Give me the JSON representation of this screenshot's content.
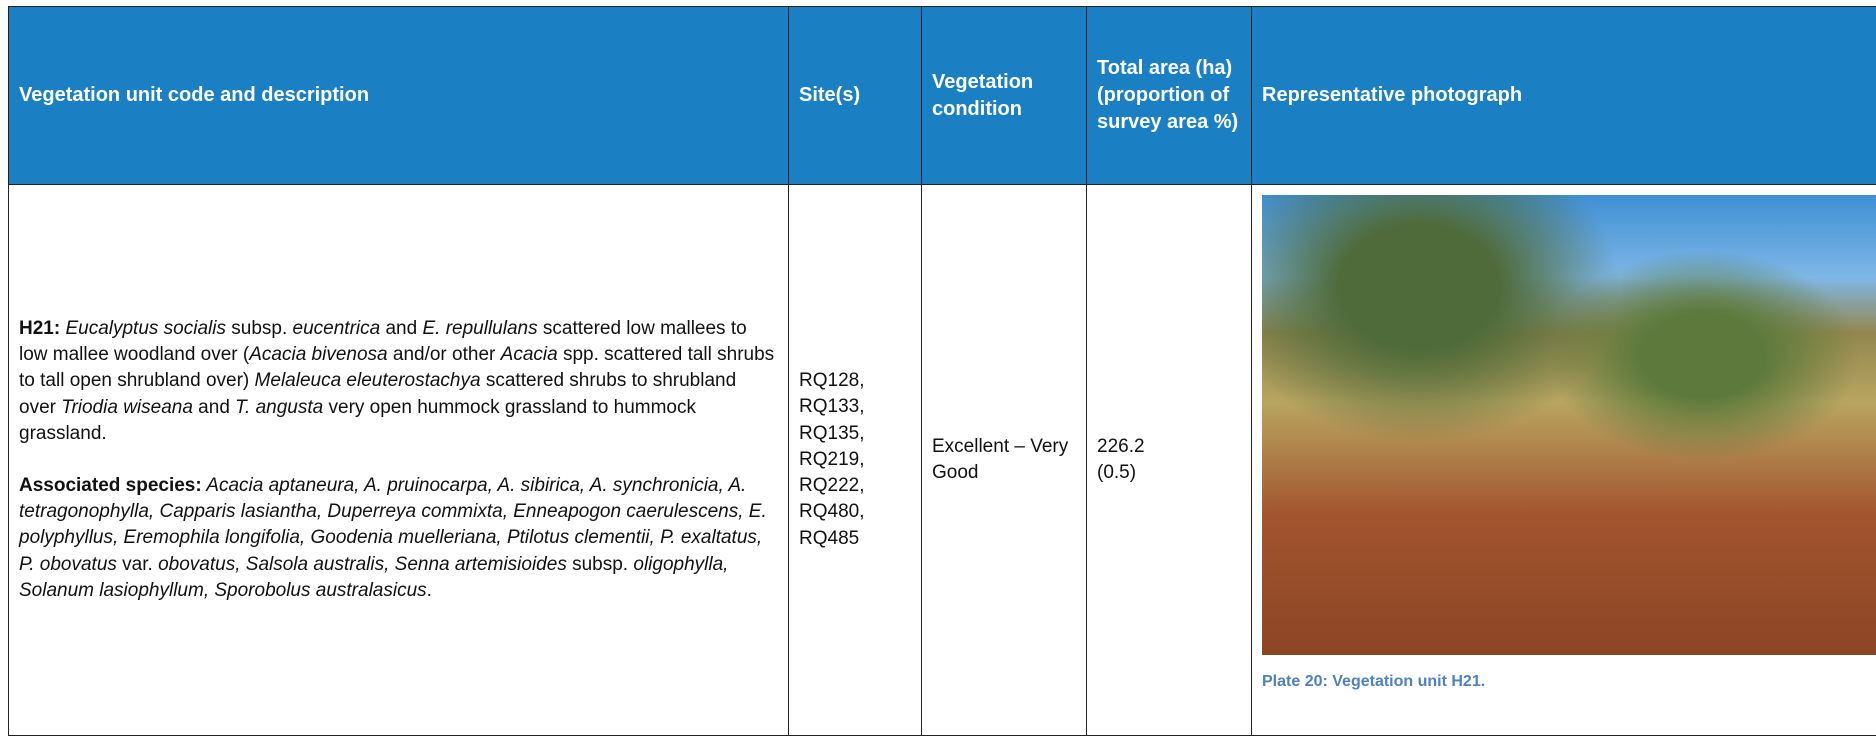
{
  "table": {
    "header": [
      "Vegetation unit code and description",
      "Site(s)",
      "Vegetation condition",
      "Total area (ha) (proportion of survey area %)",
      "Representative photograph"
    ],
    "row": {
      "description": [
        {
          "text": "H21:",
          "style": "bold"
        },
        {
          "text": " Eucalyptus socialis",
          "style": "italic"
        },
        {
          "text": " subsp. "
        },
        {
          "text": "eucentrica",
          "style": "italic"
        },
        {
          "text": " and "
        },
        {
          "text": "E. repullulans",
          "style": "italic"
        },
        {
          "text": " scattered low mallees to low mallee woodland over ("
        },
        {
          "text": "Acacia bivenosa",
          "style": "italic"
        },
        {
          "text": " and/or other "
        },
        {
          "text": "Acacia",
          "style": "italic"
        },
        {
          "text": " spp. scattered tall shrubs to tall open shrubland over) "
        },
        {
          "text": "Melaleuca eleuterostachya",
          "style": "italic"
        },
        {
          "text": " scattered shrubs to shrubland over "
        },
        {
          "text": "Triodia wiseana",
          "style": "italic"
        },
        {
          "text": " and "
        },
        {
          "text": "T. angusta",
          "style": "italic"
        },
        {
          "text": " very open hummock grassland to hummock grassland."
        }
      ],
      "associated": [
        {
          "text": "Associated species:",
          "style": "bold"
        },
        {
          "text": " Acacia aptaneura, A. pruinocarpa, A. sibirica, A. synchronicia, A. tetragonophylla, Capparis lasiantha, Duperreya commixta, Enneapogon caerulescens, E. polyphyllus, Eremophila longifolia, Goodenia muelleriana, Ptilotus clementii, P. exaltatus, P. obovatus",
          "style": "italic"
        },
        {
          "text": " var. "
        },
        {
          "text": "obovatus, Salsola australis, Senna artemisioides",
          "style": "italic"
        },
        {
          "text": " subsp. "
        },
        {
          "text": "oligophylla, Solanum lasiophyllum, Sporobolus australasicus",
          "style": "italic"
        },
        {
          "text": "."
        }
      ],
      "sites": [
        "RQ128,",
        "RQ133,",
        "RQ135,",
        "RQ219,",
        "RQ222,",
        "RQ480,",
        "RQ485"
      ],
      "condition": "Excellent – Very Good",
      "area": "226.2",
      "proportion": "(0.5)",
      "photo_caption": "Plate 20: Vegetation unit H21."
    }
  }
}
